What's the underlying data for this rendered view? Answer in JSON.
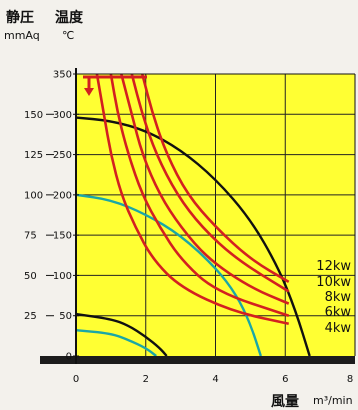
{
  "chart_data": {
    "type": "line",
    "ylabel_left": "静圧",
    "ylabel_left_unit": "mmAq",
    "ylabel_right": "温度",
    "ylabel_right_unit": "℃",
    "xlabel": "風量",
    "xlabel_unit": "m³/min",
    "xlim": [
      0,
      8
    ],
    "ylim_pressure": [
      0,
      175
    ],
    "ylim_temperature": [
      0,
      350
    ],
    "x_ticks": [
      "0",
      "2",
      "4",
      "6",
      "8"
    ],
    "y_ticks_pressure": [
      "25",
      "50",
      "75",
      "100",
      "125",
      "150"
    ],
    "y_ticks_temperature": [
      "0",
      "50",
      "100",
      "150",
      "200",
      "250",
      "300",
      "350"
    ],
    "grid": true,
    "fan_curves_pressure": [
      {
        "x": [
          0,
          1,
          2,
          3,
          4,
          5,
          5.8,
          6.3,
          6.7
        ],
        "y": [
          148,
          146,
          140,
          128,
          110,
          85,
          55,
          28,
          0
        ]
      },
      {
        "x": [
          0,
          1,
          2,
          3,
          4,
          4.6,
          5.0,
          5.3
        ],
        "y": [
          100,
          97,
          88,
          75,
          55,
          38,
          20,
          0
        ]
      },
      {
        "x": [
          0,
          1,
          1.5,
          2.0,
          2.4,
          2.6
        ],
        "y": [
          26,
          23,
          19,
          12,
          5,
          0
        ]
      },
      {
        "x": [
          0,
          1,
          1.5,
          2.0,
          2.3
        ],
        "y": [
          16,
          14,
          10,
          5,
          0
        ]
      }
    ],
    "temperature_series": [
      {
        "name": "12kw",
        "x": [
          1.9,
          2.2,
          2.6,
          3.2,
          4.0,
          5.0,
          6.1
        ],
        "y": [
          350,
          300,
          250,
          200,
          160,
          120,
          92
        ]
      },
      {
        "name": "10kw",
        "x": [
          1.6,
          1.9,
          2.3,
          2.9,
          3.6,
          4.6,
          6.1
        ],
        "y": [
          350,
          300,
          250,
          200,
          160,
          120,
          80
        ]
      },
      {
        "name": "8kw",
        "x": [
          1.3,
          1.6,
          1.9,
          2.4,
          3.0,
          3.8,
          5.0,
          6.1
        ],
        "y": [
          350,
          300,
          250,
          200,
          160,
          120,
          85,
          65
        ]
      },
      {
        "name": "6kw",
        "x": [
          1.0,
          1.2,
          1.5,
          1.9,
          2.4,
          3.0,
          4.0,
          6.1
        ],
        "y": [
          350,
          300,
          250,
          200,
          160,
          120,
          80,
          50
        ]
      },
      {
        "name": "4kw",
        "x": [
          0.6,
          0.8,
          1.0,
          1.3,
          1.7,
          2.2,
          3.0,
          4.5,
          6.1
        ],
        "y": [
          350,
          300,
          250,
          200,
          160,
          120,
          85,
          55,
          40
        ]
      }
    ],
    "colors": {
      "plot_background": "#ffff33",
      "fan_curve": "#111111",
      "resistance_curve": "#1aa7a7",
      "temperature_curve": "#d32020",
      "base_band": "#1c1c1c"
    }
  }
}
